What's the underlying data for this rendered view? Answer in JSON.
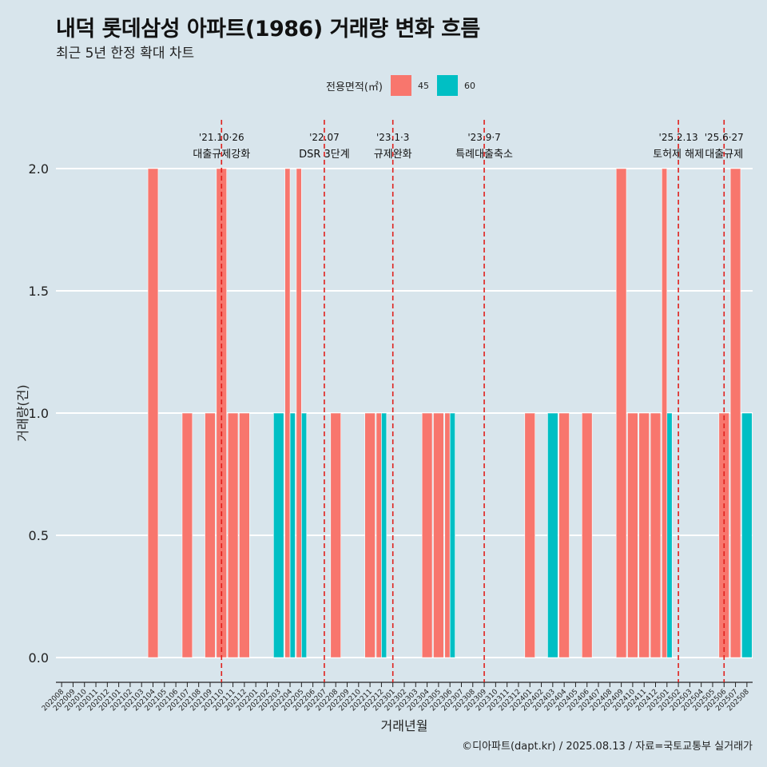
{
  "title": "내덕 롯데삼성 아파트(1986) 거래량 변화 흐름",
  "subtitle": "최근 5년 한정 확대 차트",
  "legend": {
    "title": "전용면적(㎡)",
    "items": [
      {
        "label": "45",
        "color": "#F8766D"
      },
      {
        "label": "60",
        "color": "#00BFC4"
      }
    ]
  },
  "caption": "©디아파트(dapt.kr) / 2025.08.13 / 자료=국토교통부 실거래가",
  "chart_data": {
    "type": "bar",
    "xlabel": "거래년월",
    "ylabel": "거래량(건)",
    "ylim": [
      0,
      2
    ],
    "yticks": [
      0.0,
      0.5,
      1.0,
      1.5,
      2.0
    ],
    "ytick_labels": [
      "0.0",
      "0.5",
      "1.0",
      "1.5",
      "2.0"
    ],
    "grid": true,
    "legend_position": "top",
    "categories": [
      "202008",
      "202009",
      "202010",
      "202011",
      "202012",
      "202101",
      "202102",
      "202103",
      "202104",
      "202105",
      "202106",
      "202107",
      "202108",
      "202109",
      "202110",
      "202111",
      "202112",
      "202201",
      "202202",
      "202203",
      "202204",
      "202205",
      "202206",
      "202207",
      "202208",
      "202209",
      "202210",
      "202211",
      "202212",
      "202301",
      "202302",
      "202303",
      "202304",
      "202305",
      "202306",
      "202307",
      "202308",
      "202309",
      "202310",
      "202311",
      "202312",
      "202401",
      "202402",
      "202403",
      "202404",
      "202405",
      "202406",
      "202407",
      "202408",
      "202409",
      "202410",
      "202411",
      "202412",
      "202501",
      "202502",
      "202503",
      "202504",
      "202505",
      "202506",
      "202507",
      "202508"
    ],
    "series": [
      {
        "name": "45",
        "color": "#F8766D",
        "values": [
          0,
          0,
          0,
          0,
          0,
          0,
          0,
          0,
          2,
          0,
          0,
          1,
          0,
          1,
          2,
          1,
          1,
          0,
          0,
          0,
          2,
          2,
          0,
          0,
          1,
          0,
          0,
          1,
          1,
          0,
          0,
          0,
          1,
          1,
          1,
          0,
          0,
          0,
          0,
          0,
          0,
          1,
          0,
          0,
          1,
          0,
          1,
          0,
          0,
          2,
          1,
          1,
          1,
          2,
          0,
          0,
          0,
          0,
          1,
          2,
          0
        ]
      },
      {
        "name": "60",
        "color": "#00BFC4",
        "values": [
          0,
          0,
          0,
          0,
          0,
          0,
          0,
          0,
          0,
          0,
          0,
          0,
          0,
          0,
          0,
          0,
          0,
          0,
          0,
          1,
          1,
          1,
          0,
          0,
          0,
          0,
          0,
          0,
          1,
          0,
          0,
          0,
          0,
          0,
          1,
          0,
          0,
          0,
          0,
          0,
          0,
          0,
          0,
          1,
          0,
          0,
          0,
          0,
          0,
          0,
          0,
          0,
          0,
          1,
          0,
          0,
          0,
          0,
          0,
          0,
          1
        ]
      }
    ],
    "annotations": [
      {
        "category": "202110",
        "date": "'21.10·26",
        "label": "대출규제강화",
        "color": "#e0201c"
      },
      {
        "category": "202207",
        "date": "'22.07",
        "label": "DSR 3단계",
        "color": "#e0201c"
      },
      {
        "category": "202301",
        "date": "'23.1·3",
        "label": "규제완화",
        "color": "#e0201c"
      },
      {
        "category": "202309",
        "date": "'23.9·7",
        "label": "특례대출축소",
        "color": "#e0201c"
      },
      {
        "category": "202502",
        "date": "'25.2.13",
        "label": "토허제 해제",
        "color": "#e0201c"
      },
      {
        "category": "202506",
        "date": "'25.6·27",
        "label": "대출규제",
        "color": "#e0201c"
      }
    ]
  }
}
